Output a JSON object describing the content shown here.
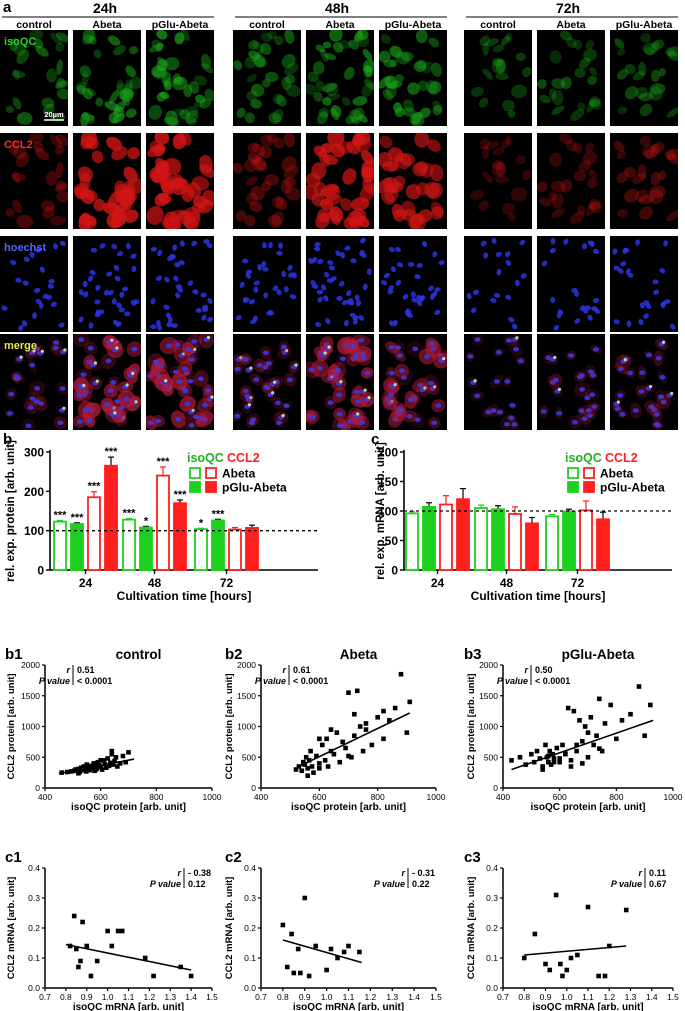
{
  "figure": {
    "panel_a": {
      "label": "a",
      "timepoints": [
        "24h",
        "48h",
        "72h"
      ],
      "conditions": [
        "control",
        "Abeta",
        "pGlu-Abeta"
      ],
      "stains": [
        {
          "name": "isoQC",
          "color": "#2bd12b",
          "cell": "#1aa51a",
          "nucleus": ""
        },
        {
          "name": "CCL2",
          "color": "#ff2a2a",
          "cell": "#d11515",
          "nucleus": ""
        },
        {
          "name": "hoechst",
          "color": "#4c64ff",
          "cell": "",
          "nucleus": "#2a35e0"
        },
        {
          "name": "merge",
          "color": "#e8e84a",
          "cell": "#b01a3a",
          "nucleus": "#3a3ae0"
        }
      ],
      "scale_bar": "20µm",
      "intensity": {
        "24h": {
          "isoQC": [
            0.55,
            0.7,
            0.85
          ],
          "CCL2": [
            0.25,
            0.95,
            0.95
          ]
        },
        "48h": {
          "isoQC": [
            0.6,
            0.7,
            0.75
          ],
          "CCL2": [
            0.3,
            0.9,
            0.75
          ]
        },
        "72h": {
          "isoQC": [
            0.25,
            0.35,
            0.35
          ],
          "CCL2": [
            0.12,
            0.2,
            0.25
          ]
        }
      },
      "cell_counts": {
        "24h": [
          22,
          34,
          36
        ],
        "48h": [
          30,
          40,
          32
        ],
        "72h": [
          18,
          22,
          24
        ]
      }
    },
    "panel_b": {
      "label": "b",
      "ylabel": "rel. exp. protein [arb. unit]",
      "xlabel": "Cultivation time [hours]",
      "legend": {
        "isoQC": "isoQC",
        "CCL2": "CCL2",
        "abeta": "Abeta",
        "pglu": "pGlu-Abeta"
      }
    },
    "panel_c": {
      "label": "c",
      "ylabel": "rel. exp. mRNA [arb. unit]",
      "xlabel": "Cultivation time [hours]",
      "legend": {
        "isoQC": "isoQC",
        "CCL2": "CCL2",
        "abeta": "Abeta",
        "pglu": "pGlu-Abeta"
      }
    }
  },
  "chart_data": [
    {
      "id": "b",
      "type": "bar",
      "title": "",
      "xlabel": "Cultivation time [hours]",
      "ylabel": "rel. exp. protein [arb. unit]",
      "categories": [
        "24",
        "48",
        "72"
      ],
      "ylim": [
        0,
        300
      ],
      "yticks": [
        0,
        100,
        200,
        300
      ],
      "reference_line": 100,
      "series": [
        {
          "name": "isoQC Abeta",
          "marker": "isoQC",
          "treatment": "Abeta",
          "color": "#1ed01e",
          "filled": false,
          "values": [
            123,
            128,
            104
          ],
          "errors": [
            3,
            3,
            2
          ],
          "sig": [
            "***",
            "***",
            "*"
          ]
        },
        {
          "name": "isoQC pGlu-Abeta",
          "marker": "isoQC",
          "treatment": "pGlu-Abeta",
          "color": "#1ed01e",
          "filled": true,
          "values": [
            117,
            108,
            126
          ],
          "errors": [
            3,
            3,
            3
          ],
          "sig": [
            "***",
            "*",
            "***"
          ]
        },
        {
          "name": "CCL2 Abeta",
          "marker": "CCL2",
          "treatment": "Abeta",
          "color": "#ff1f1f",
          "filled": false,
          "values": [
            185,
            240,
            103
          ],
          "errors": [
            14,
            22,
            5
          ],
          "sig": [
            "***",
            "***",
            ""
          ]
        },
        {
          "name": "CCL2 pGlu-Abeta",
          "marker": "CCL2",
          "treatment": "pGlu-Abeta",
          "color": "#ff1f1f",
          "filled": true,
          "values": [
            265,
            170,
            107
          ],
          "errors": [
            22,
            8,
            7
          ],
          "sig": [
            "***",
            "***",
            ""
          ]
        }
      ]
    },
    {
      "id": "c",
      "type": "bar",
      "title": "",
      "xlabel": "Cultivation time [hours]",
      "ylabel": "rel. exp. mRNA [arb. unit]",
      "categories": [
        "24",
        "48",
        "72"
      ],
      "ylim": [
        0,
        200
      ],
      "yticks": [
        0,
        50,
        100,
        150,
        200
      ],
      "reference_line": 100,
      "series": [
        {
          "name": "isoQC Abeta",
          "marker": "isoQC",
          "treatment": "Abeta",
          "color": "#1ed01e",
          "filled": false,
          "values": [
            96,
            105,
            91
          ],
          "errors": [
            3,
            5,
            3
          ],
          "sig": [
            "",
            "",
            ""
          ]
        },
        {
          "name": "isoQC pGlu-Abeta",
          "marker": "isoQC",
          "treatment": "pGlu-Abeta",
          "color": "#1ed01e",
          "filled": true,
          "values": [
            107,
            103,
            99
          ],
          "errors": [
            7,
            6,
            4
          ],
          "sig": [
            "",
            "",
            ""
          ]
        },
        {
          "name": "CCL2 Abeta",
          "marker": "CCL2",
          "treatment": "Abeta",
          "color": "#ff1f1f",
          "filled": false,
          "values": [
            111,
            95,
            101
          ],
          "errors": [
            15,
            12,
            16
          ],
          "sig": [
            "",
            "",
            ""
          ]
        },
        {
          "name": "CCL2 pGlu-Abeta",
          "marker": "CCL2",
          "treatment": "pGlu-Abeta",
          "color": "#ff1f1f",
          "filled": true,
          "values": [
            120,
            79,
            86
          ],
          "errors": [
            18,
            10,
            12
          ],
          "sig": [
            "",
            "",
            ""
          ]
        }
      ]
    },
    {
      "id": "b1",
      "type": "scatter",
      "label": "b1",
      "title": "control",
      "xlabel": "isoQC protein [arb. unit]",
      "ylabel": "CCL2 protein [arb. unit]",
      "xlim": [
        400,
        1000
      ],
      "ylim": [
        0,
        2000
      ],
      "xticks": [
        400,
        600,
        800,
        1000
      ],
      "yticks": [
        0,
        500,
        1000,
        1500,
        2000
      ],
      "xtick_labels": [
        "400",
        "600",
        "800",
        "1000"
      ],
      "ytick_labels": [
        "0",
        "500",
        "1000",
        "1500",
        "2000"
      ],
      "stats": {
        "r_label": "r",
        "r": "0.51",
        "p_label": "P value",
        "p": "< 0.0001"
      },
      "stats_loc": "top-left",
      "regression": {
        "x": [
          450,
          720
        ],
        "y": [
          235,
          470
        ]
      },
      "points": {
        "x": [
          460,
          480,
          495,
          505,
          510,
          520,
          525,
          530,
          535,
          540,
          545,
          548,
          550,
          555,
          560,
          565,
          570,
          575,
          578,
          580,
          585,
          590,
          595,
          600,
          605,
          610,
          615,
          620,
          625,
          630,
          635,
          640,
          645,
          650,
          655,
          660,
          670,
          680,
          690,
          700,
          520,
          560,
          600,
          640,
          540,
          580
        ],
        "y": [
          250,
          260,
          270,
          280,
          300,
          310,
          260,
          330,
          290,
          350,
          310,
          270,
          380,
          320,
          290,
          360,
          330,
          400,
          280,
          350,
          310,
          420,
          370,
          340,
          300,
          450,
          390,
          330,
          480,
          360,
          410,
          600,
          380,
          440,
          500,
          350,
          400,
          520,
          420,
          580,
          240,
          300,
          450,
          550,
          340,
          290
        ]
      }
    },
    {
      "id": "b2",
      "type": "scatter",
      "label": "b2",
      "title": "Abeta",
      "xlabel": "isoQC protein [arb. unit]",
      "ylabel": "CCL2 protein [arb. unit]",
      "xlim": [
        400,
        1000
      ],
      "ylim": [
        0,
        2000
      ],
      "xticks": [
        400,
        600,
        800,
        1000
      ],
      "yticks": [
        0,
        500,
        1000,
        1500,
        2000
      ],
      "xtick_labels": [
        "400",
        "600",
        "800",
        "1000"
      ],
      "ytick_labels": [
        "0",
        "500",
        "1000",
        "1500",
        "2000"
      ],
      "stats": {
        "r_label": "r",
        "r": "0.61",
        "p_label": "P value",
        "p": "< 0.0001"
      },
      "stats_loc": "top-left",
      "regression": {
        "x": [
          530,
          910
        ],
        "y": [
          350,
          1220
        ]
      },
      "points": {
        "x": [
          520,
          530,
          540,
          545,
          550,
          555,
          560,
          565,
          570,
          575,
          580,
          590,
          600,
          610,
          620,
          625,
          630,
          640,
          650,
          660,
          670,
          680,
          690,
          700,
          710,
          720,
          730,
          740,
          750,
          760,
          780,
          800,
          820,
          840,
          860,
          880,
          900,
          910,
          560,
          600,
          640,
          700,
          720,
          760,
          820,
          600
        ],
        "y": [
          300,
          350,
          280,
          420,
          380,
          500,
          320,
          450,
          600,
          350,
          250,
          520,
          400,
          700,
          450,
          800,
          350,
          600,
          550,
          900,
          420,
          750,
          650,
          1550,
          500,
          850,
          1580,
          1000,
          600,
          950,
          700,
          1150,
          800,
          1100,
          1300,
          1850,
          900,
          1400,
          200,
          320,
          950,
          520,
          1200,
          1050,
          1250,
          800
        ]
      }
    },
    {
      "id": "b3",
      "type": "scatter",
      "label": "b3",
      "title": "pGlu-Abeta",
      "xlabel": "isoQC protein [arb. unit]",
      "ylabel": "CCL2 protein [arb. unit]",
      "xlim": [
        400,
        1000
      ],
      "ylim": [
        0,
        2000
      ],
      "xticks": [
        400,
        600,
        800,
        1000
      ],
      "yticks": [
        0,
        500,
        1000,
        1500,
        2000
      ],
      "xtick_labels": [
        "400",
        "600",
        "800",
        "1000"
      ],
      "ytick_labels": [
        "0",
        "500",
        "1000",
        "1500",
        "2000"
      ],
      "stats": {
        "r_label": "r",
        "r": "0.50",
        "p_label": "P value",
        "p": "< 0.0001"
      },
      "stats_loc": "top-left",
      "regression": {
        "x": [
          430,
          930
        ],
        "y": [
          300,
          1100
        ]
      },
      "points": {
        "x": [
          430,
          460,
          480,
          500,
          510,
          520,
          530,
          540,
          550,
          555,
          560,
          565,
          570,
          575,
          580,
          590,
          600,
          610,
          620,
          630,
          640,
          650,
          660,
          670,
          680,
          690,
          700,
          710,
          720,
          730,
          740,
          750,
          760,
          780,
          800,
          820,
          850,
          880,
          900,
          920,
          540,
          580,
          620,
          660,
          700,
          740,
          600,
          640,
          560,
          680
        ],
        "y": [
          450,
          500,
          380,
          550,
          420,
          600,
          480,
          350,
          700,
          500,
          420,
          600,
          380,
          550,
          480,
          650,
          420,
          700,
          550,
          1300,
          450,
          1250,
          600,
          1100,
          400,
          1000,
          500,
          1150,
          700,
          850,
          1450,
          600,
          1050,
          1350,
          800,
          1100,
          1200,
          1650,
          850,
          1350,
          300,
          420,
          560,
          700,
          900,
          640,
          480,
          350,
          520,
          760
        ]
      }
    },
    {
      "id": "c1",
      "type": "scatter",
      "label": "c1",
      "title": "",
      "xlabel": "isoQC mRNA [arb. unit]",
      "ylabel": "CCL2 mRNA [arb. unit]",
      "xlim": [
        0.7,
        1.5
      ],
      "ylim": [
        0.0,
        0.4
      ],
      "xticks": [
        0.7,
        0.8,
        0.9,
        1.0,
        1.1,
        1.2,
        1.3,
        1.4,
        1.5
      ],
      "yticks": [
        0.0,
        0.1,
        0.2,
        0.3,
        0.4
      ],
      "xtick_labels": [
        "0.7",
        "0.8",
        "0.9",
        "1.0",
        "1.1",
        "1.2",
        "1.3",
        "1.4",
        "1.5"
      ],
      "ytick_labels": [
        "0.0",
        "0.1",
        "0.2",
        "0.3",
        "0.4"
      ],
      "stats": {
        "r_label": "r",
        "r": "- 0.38",
        "p_label": "P value",
        "p": "0.12"
      },
      "stats_loc": "top-right",
      "regression": {
        "x": [
          0.8,
          1.4
        ],
        "y": [
          0.145,
          0.06
        ]
      },
      "points": {
        "x": [
          0.82,
          0.84,
          0.85,
          0.86,
          0.87,
          0.88,
          0.9,
          0.92,
          0.95,
          1.0,
          1.02,
          1.05,
          1.07,
          1.18,
          1.22,
          1.35,
          1.4
        ],
        "y": [
          0.14,
          0.24,
          0.13,
          0.07,
          0.09,
          0.22,
          0.14,
          0.04,
          0.09,
          0.19,
          0.14,
          0.19,
          0.19,
          0.1,
          0.04,
          0.07,
          0.04
        ]
      }
    },
    {
      "id": "c2",
      "type": "scatter",
      "label": "c2",
      "title": "",
      "xlabel": "isoQC mRNA [arb. unit]",
      "ylabel": "CCL2 mRNA [arb. unit]",
      "xlim": [
        0.7,
        1.5
      ],
      "ylim": [
        0.0,
        0.4
      ],
      "xticks": [
        0.7,
        0.8,
        0.9,
        1.0,
        1.1,
        1.2,
        1.3,
        1.4,
        1.5
      ],
      "yticks": [
        0.0,
        0.1,
        0.2,
        0.3,
        0.4
      ],
      "xtick_labels": [
        "0.7",
        "0.8",
        "0.9",
        "1.0",
        "1.1",
        "1.2",
        "1.3",
        "1.4",
        "1.5"
      ],
      "ytick_labels": [
        "0.0",
        "0.1",
        "0.2",
        "0.3",
        "0.4"
      ],
      "stats": {
        "r_label": "r",
        "r": "- 0.31",
        "p_label": "P value",
        "p": "0.22"
      },
      "stats_loc": "top-right",
      "regression": {
        "x": [
          0.8,
          1.16
        ],
        "y": [
          0.16,
          0.085
        ]
      },
      "points": {
        "x": [
          0.8,
          0.82,
          0.84,
          0.85,
          0.87,
          0.88,
          0.9,
          0.92,
          0.95,
          1.0,
          1.02,
          1.05,
          1.08,
          1.1,
          1.15
        ],
        "y": [
          0.21,
          0.07,
          0.18,
          0.05,
          0.13,
          0.05,
          0.3,
          0.04,
          0.14,
          0.06,
          0.13,
          0.1,
          0.12,
          0.14,
          0.12
        ]
      }
    },
    {
      "id": "c3",
      "type": "scatter",
      "label": "c3",
      "title": "",
      "xlabel": "isoQC mRNA [arb. unit]",
      "ylabel": "CCL2 mRNA [arb. unit]",
      "xlim": [
        0.7,
        1.5
      ],
      "ylim": [
        0.0,
        0.4
      ],
      "xticks": [
        0.7,
        0.8,
        0.9,
        1.0,
        1.1,
        1.2,
        1.3,
        1.4,
        1.5
      ],
      "yticks": [
        0.0,
        0.1,
        0.2,
        0.3,
        0.4
      ],
      "xtick_labels": [
        "0.7",
        "0.8",
        "0.9",
        "1.0",
        "1.1",
        "1.2",
        "1.3",
        "1.4",
        "1.5"
      ],
      "ytick_labels": [
        "0.0",
        "0.1",
        "0.2",
        "0.3",
        "0.4"
      ],
      "stats": {
        "r_label": "r",
        "r": "0.11",
        "p_label": "P value",
        "p": "0.67"
      },
      "stats_loc": "top-right",
      "regression": {
        "x": [
          0.8,
          1.28
        ],
        "y": [
          0.11,
          0.14
        ]
      },
      "points": {
        "x": [
          0.8,
          0.85,
          0.9,
          0.92,
          0.95,
          0.97,
          0.98,
          1.0,
          1.02,
          1.05,
          1.1,
          1.15,
          1.18,
          1.2,
          1.28
        ],
        "y": [
          0.1,
          0.18,
          0.08,
          0.06,
          0.31,
          0.08,
          0.04,
          0.06,
          0.1,
          0.11,
          0.27,
          0.04,
          0.04,
          0.14,
          0.26
        ]
      }
    }
  ]
}
